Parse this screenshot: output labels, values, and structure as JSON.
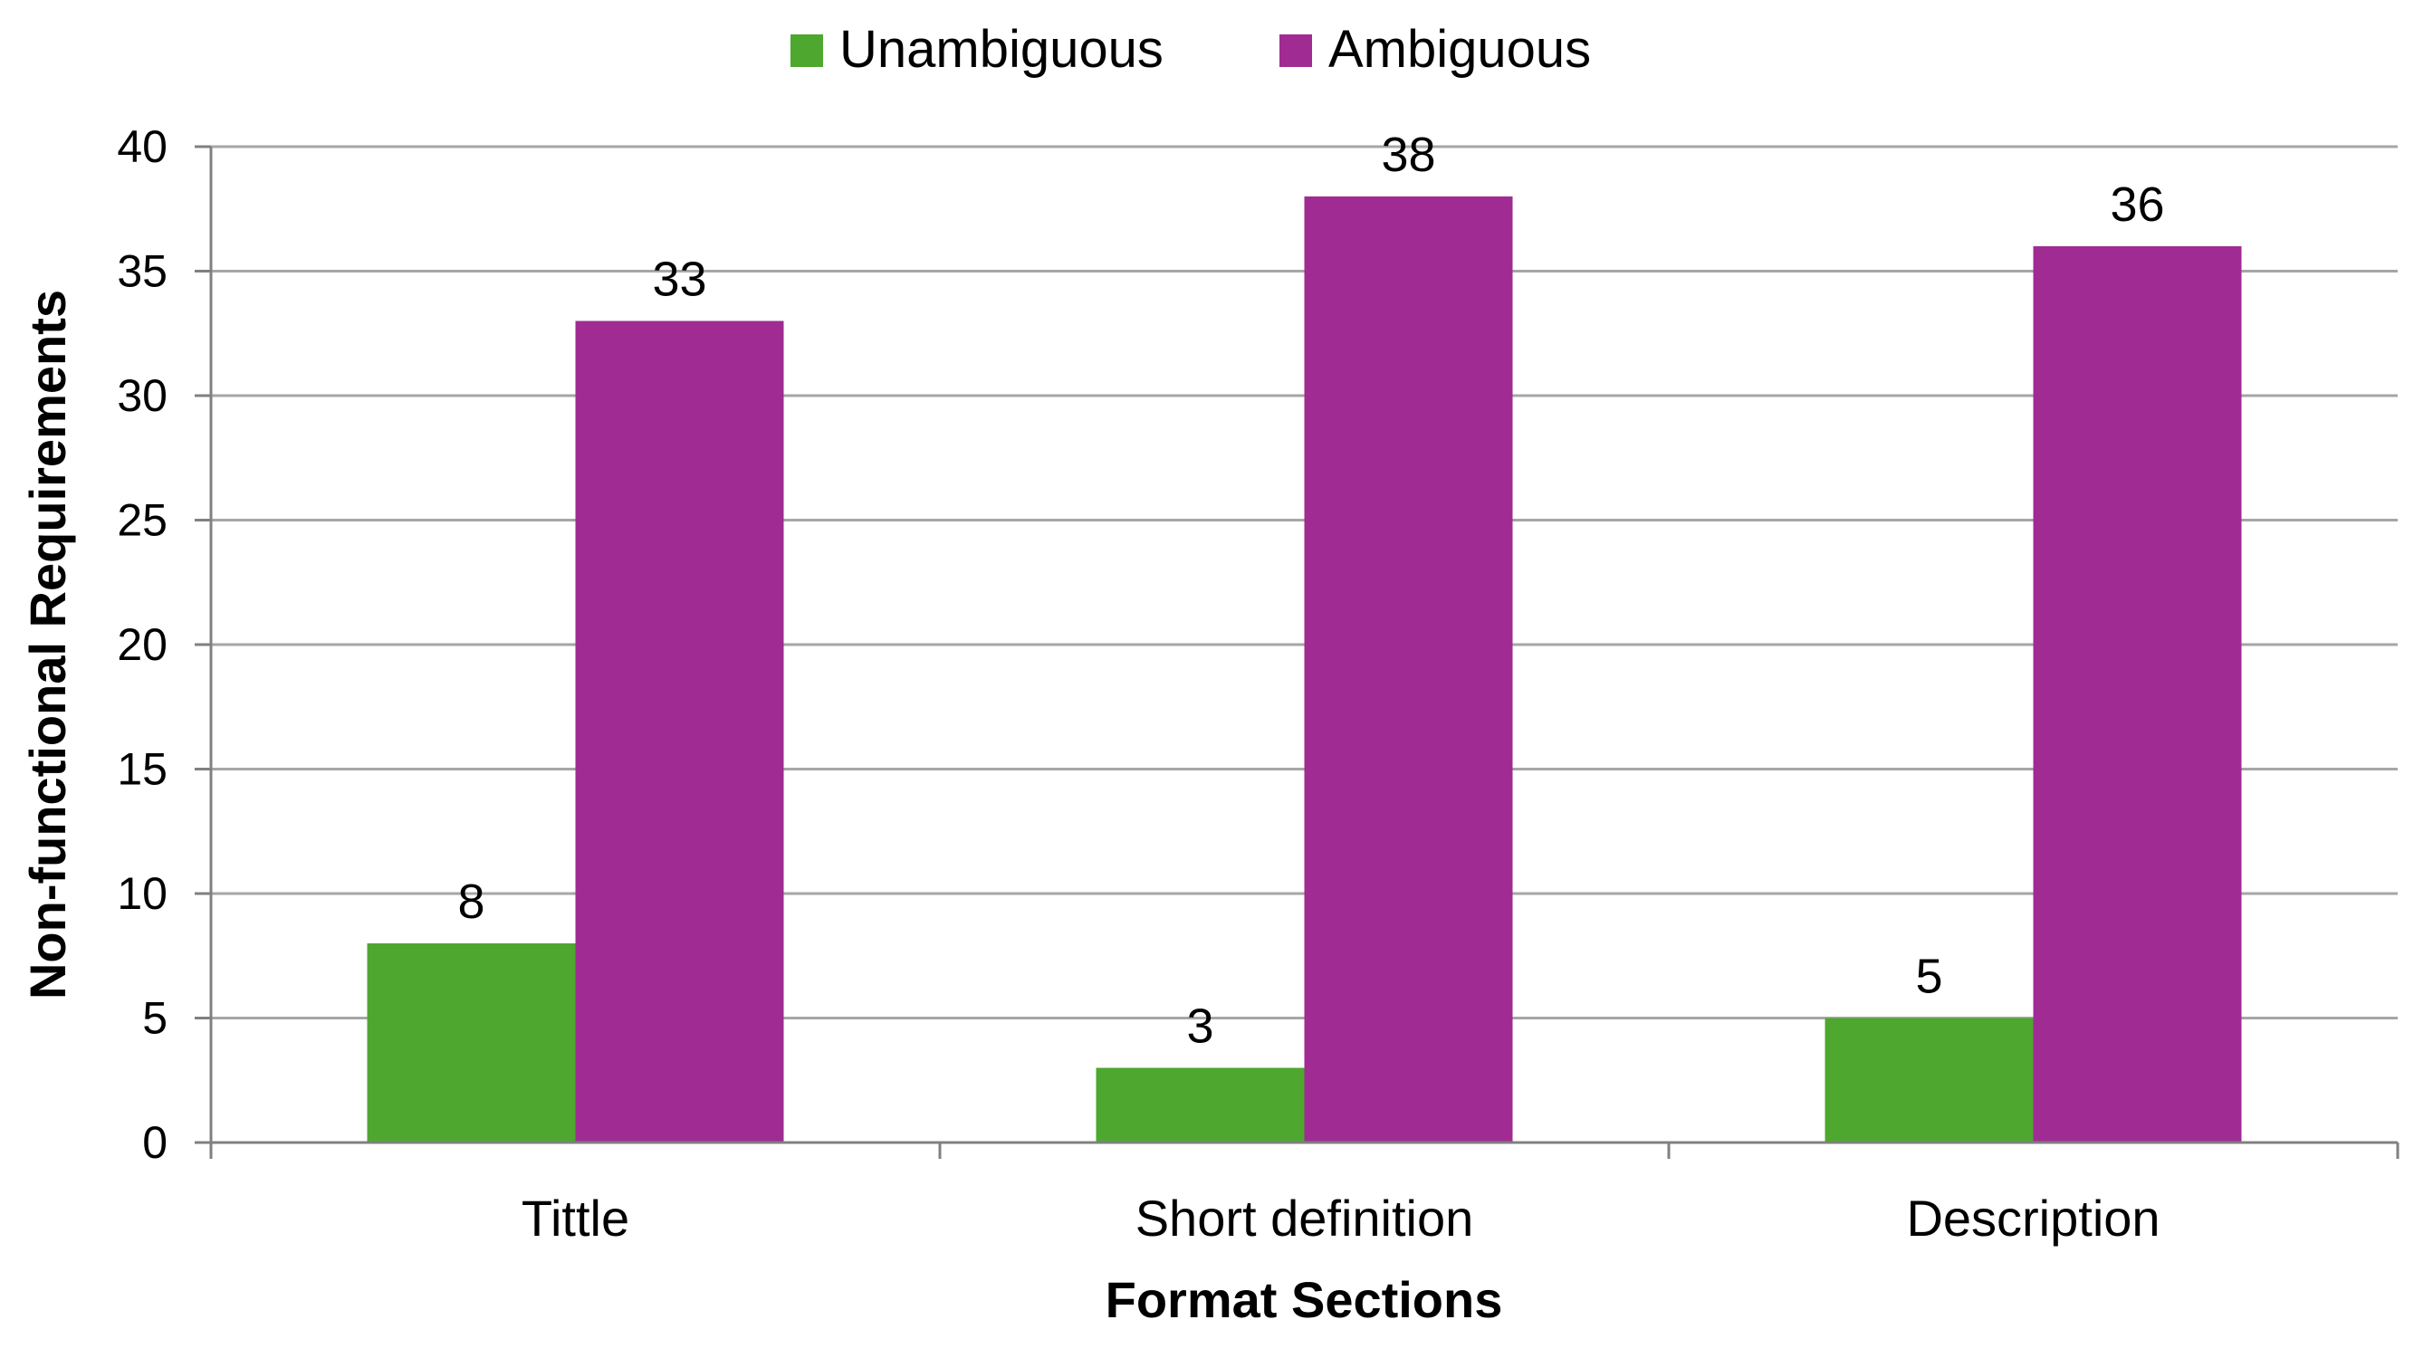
{
  "chart_data": {
    "type": "bar",
    "categories": [
      "Tittle",
      "Short definition",
      "Description"
    ],
    "series": [
      {
        "name": "Unambiguous",
        "values": [
          8,
          3,
          5
        ],
        "color": "#4ea72e"
      },
      {
        "name": "Ambiguous",
        "values": [
          33,
          38,
          36
        ],
        "color": "#a02b93"
      }
    ],
    "data_labels": [
      [
        "8",
        "3",
        "5"
      ],
      [
        "33",
        "38",
        "36"
      ]
    ],
    "xlabel": "Format Sections",
    "ylabel": "Non-functional Requirements",
    "ylim": [
      0,
      40
    ],
    "yticks": [
      0,
      5,
      10,
      15,
      20,
      25,
      30,
      35,
      40
    ],
    "ytick_labels": [
      "0",
      "5",
      "10",
      "15",
      "20",
      "25",
      "30",
      "35",
      "40"
    ],
    "grid": "horizontal",
    "legend_position": "top",
    "gridline_color": "#a6a6a6",
    "axis_color": "#808080"
  }
}
